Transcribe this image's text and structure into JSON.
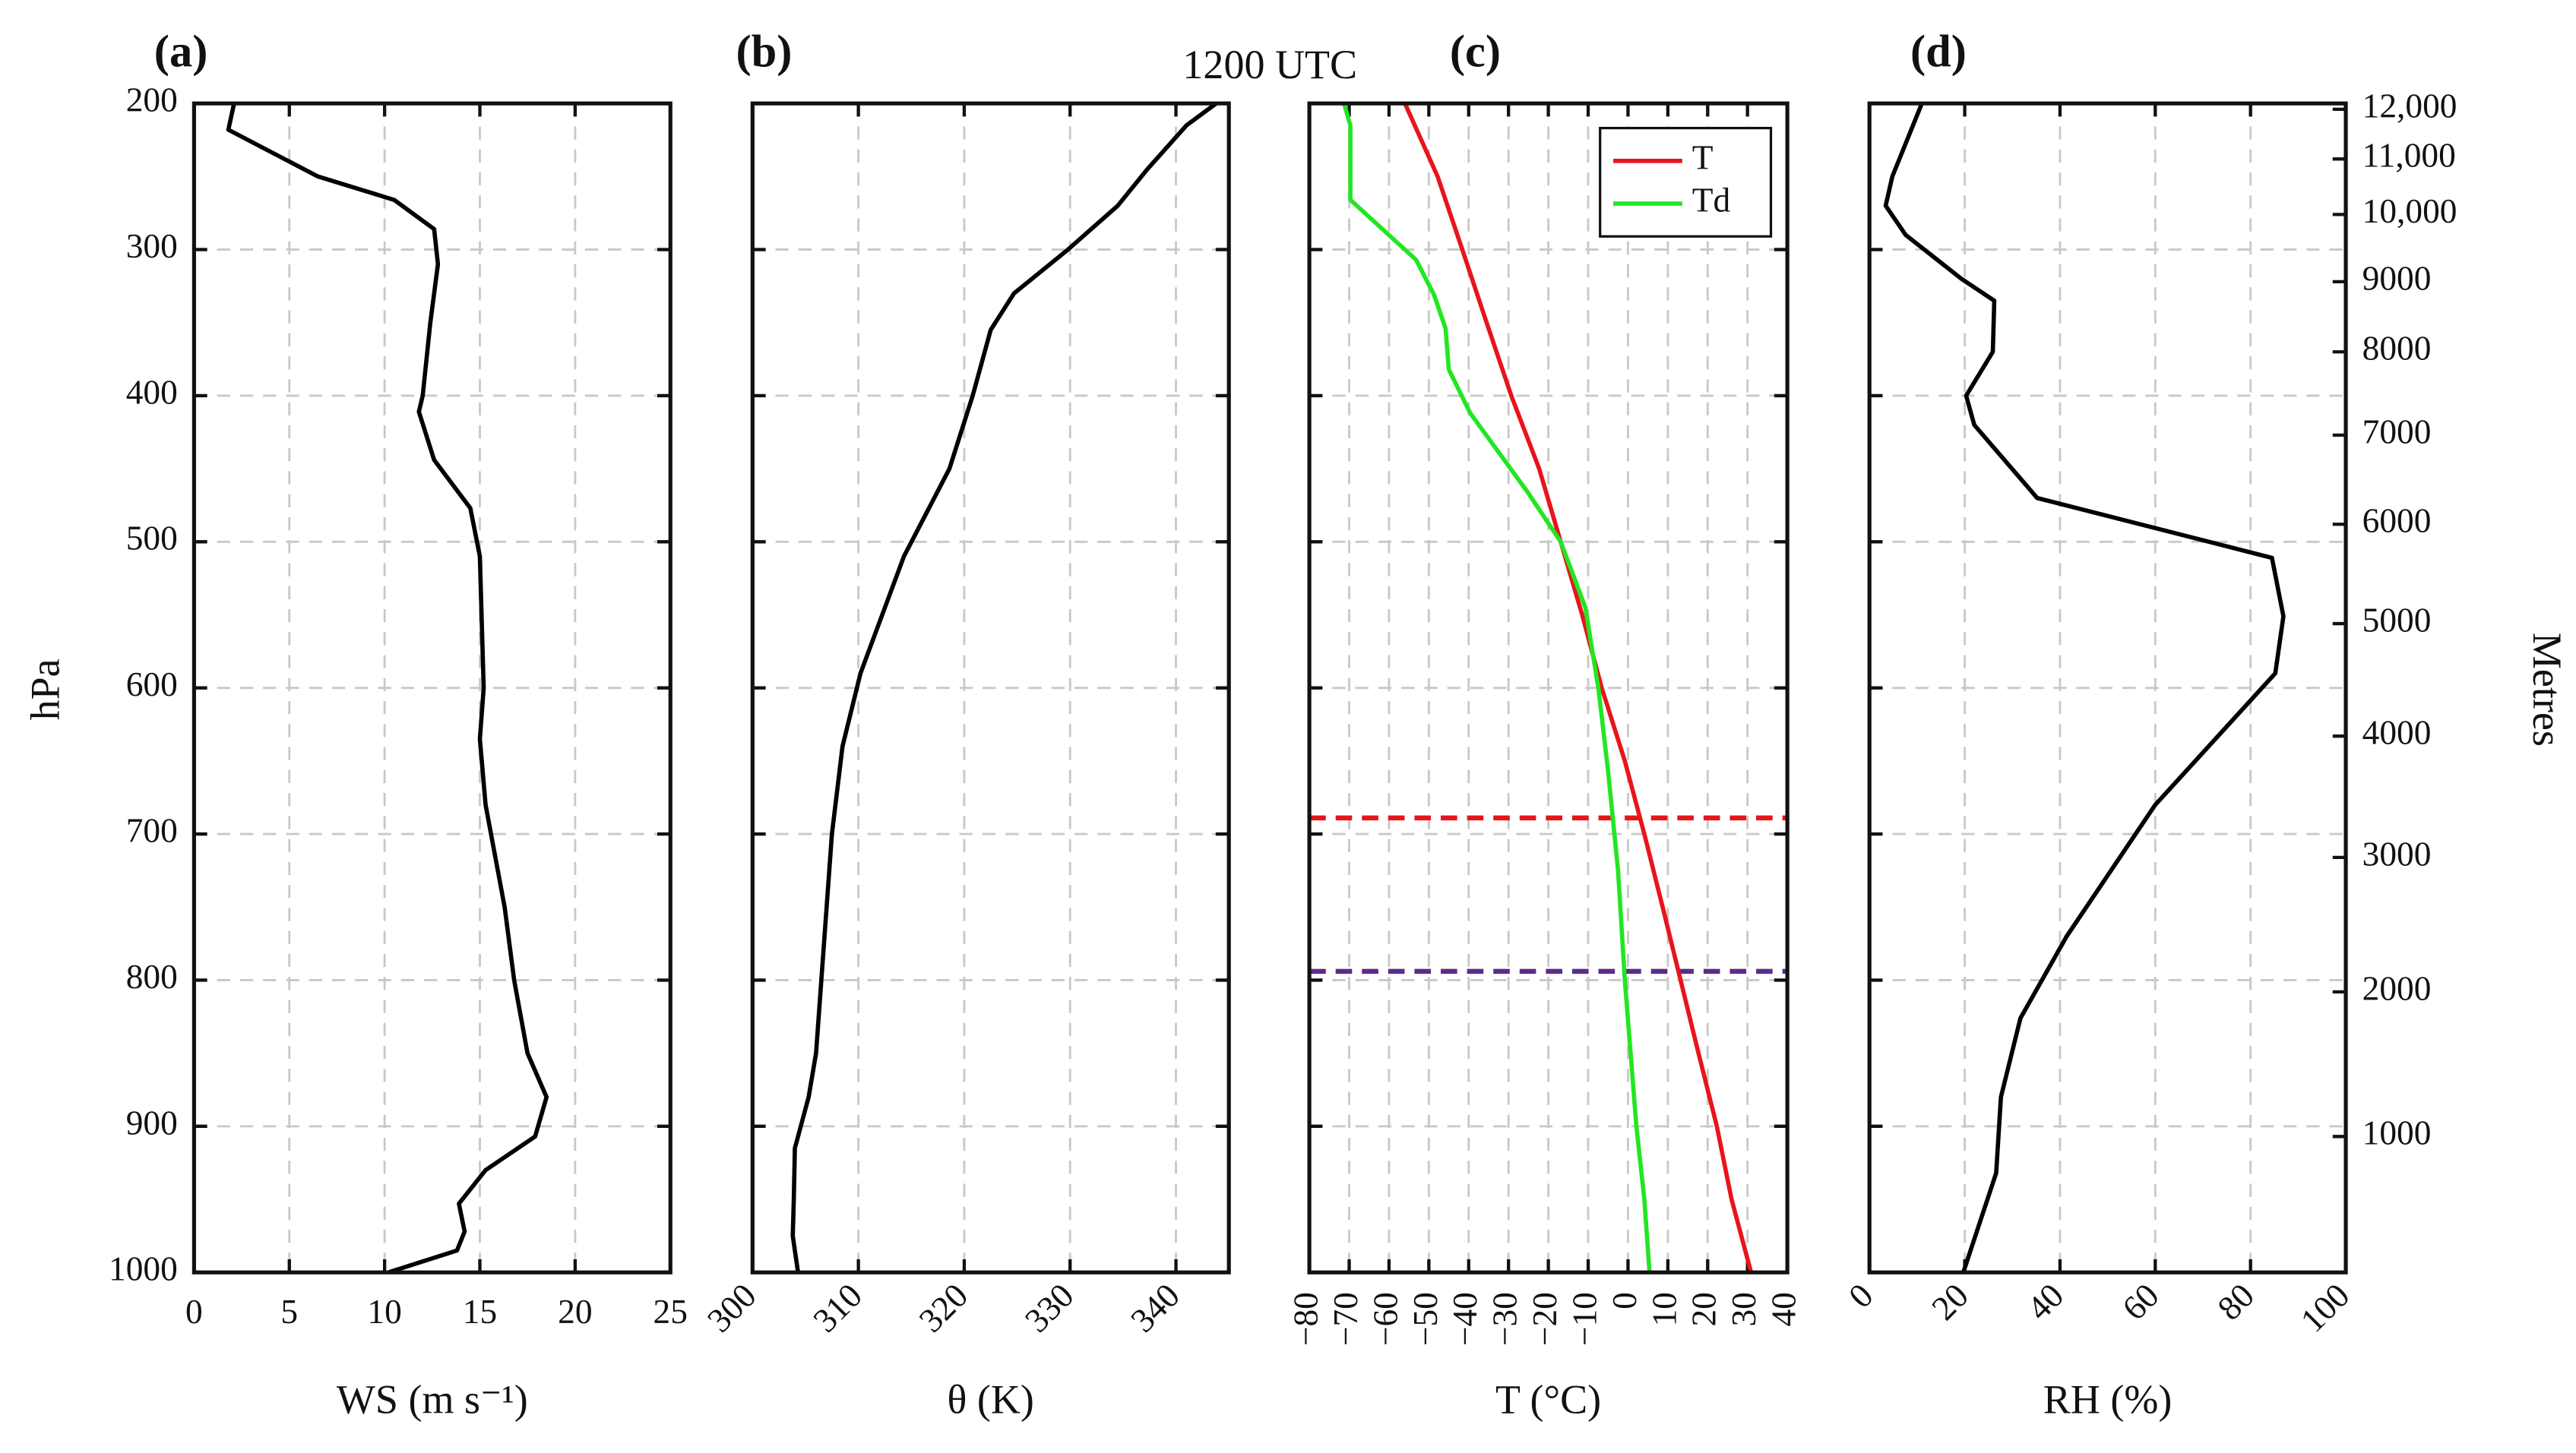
{
  "header": {
    "title": "1200 UTC"
  },
  "chart_data": [
    {
      "type": "line",
      "title": "(a)",
      "xlabel": "WS (m s⁻¹)",
      "ylabel": "hPa",
      "xlim": [
        0,
        25
      ],
      "xticks": [
        0,
        5,
        10,
        15,
        20,
        25
      ],
      "xtick_rotation": 0,
      "ylim": [
        200,
        1000
      ],
      "yreverse": true,
      "yticks": [
        200,
        300,
        400,
        500,
        600,
        700,
        800,
        900,
        1000
      ],
      "grid": true,
      "series": [
        {
          "color": "#000000",
          "levels": [
            200,
            218,
            250,
            266,
            286,
            310,
            350,
            400,
            411,
            444,
            477,
            510,
            600,
            635,
            680,
            750,
            800,
            850,
            880,
            907,
            930,
            953,
            972,
            985,
            1000
          ],
          "values": [
            2.1,
            1.8,
            6.5,
            10.5,
            12.6,
            12.8,
            12.4,
            12.0,
            11.8,
            12.6,
            14.5,
            15.0,
            15.2,
            15.0,
            15.3,
            16.3,
            16.8,
            17.5,
            18.5,
            17.9,
            15.3,
            13.9,
            14.2,
            13.8,
            10.2
          ]
        }
      ]
    },
    {
      "type": "line",
      "title": "(b)",
      "xlabel": "θ (K)",
      "xlim": [
        300,
        345
      ],
      "xticks": [
        300,
        310,
        320,
        330,
        340
      ],
      "xtick_rotation": 45,
      "ylim": [
        200,
        1000
      ],
      "yreverse": true,
      "grid": true,
      "series": [
        {
          "color": "#000000",
          "levels": [
            200,
            215,
            245,
            270,
            300,
            330,
            355,
            400,
            450,
            510,
            590,
            640,
            700,
            800,
            850,
            880,
            915,
            950,
            975,
            1000
          ],
          "values": [
            343.8,
            341,
            337.3,
            334.5,
            329.8,
            324.7,
            322.5,
            320.8,
            318.6,
            314.3,
            310.2,
            308.5,
            307.5,
            306.5,
            306,
            305.3,
            304,
            303.9,
            303.8,
            304.3
          ]
        }
      ]
    },
    {
      "type": "line",
      "title": "(c)",
      "xlabel": "T (°C)",
      "xlim": [
        -80,
        40
      ],
      "xticks": [
        {
          "value": -80,
          "label": "−80"
        },
        {
          "value": -70,
          "label": "−70"
        },
        {
          "value": -60,
          "label": "−60"
        },
        {
          "value": -50,
          "label": "−50"
        },
        {
          "value": -40,
          "label": "−40"
        },
        {
          "value": -30,
          "label": "−30"
        },
        {
          "value": -20,
          "label": "−20"
        },
        {
          "value": -10,
          "label": "−10"
        },
        0,
        10,
        20,
        30,
        40
      ],
      "xtick_rotation": 90,
      "ylim": [
        200,
        1000
      ],
      "yreverse": true,
      "grid": true,
      "legend": "upper right",
      "series": [
        {
          "name": "T",
          "color": "#e8141c",
          "levels": [
            200,
            250,
            300,
            350,
            400,
            450,
            500,
            550,
            600,
            650,
            700,
            750,
            800,
            850,
            900,
            950,
            1000
          ],
          "values": [
            -56,
            -47.8,
            -41.6,
            -35.5,
            -29.3,
            -22.3,
            -16.9,
            -11.5,
            -6.6,
            -0.8,
            4.1,
            8.7,
            13.2,
            17.7,
            22.3,
            26,
            30.9
          ]
        },
        {
          "name": "Td",
          "color": "#22e622",
          "levels": [
            200,
            215,
            266,
            307,
            331,
            354,
            382,
            412,
            466,
            500,
            545,
            601,
            657,
            725,
            800,
            900,
            950,
            1000
          ],
          "values": [
            -71.3,
            -69.7,
            -69.7,
            -53.2,
            -48.7,
            -45.8,
            -45,
            -39.6,
            -25.2,
            -16.9,
            -10.7,
            -7.4,
            -5,
            -2.5,
            -0.8,
            2.1,
            4.1,
            5.4
          ]
        }
      ],
      "hlines": [
        {
          "value": 689,
          "color": "#e8141c"
        },
        {
          "value": 794,
          "color": "#5b2c8a"
        }
      ]
    },
    {
      "type": "line",
      "title": "(d)",
      "xlabel": "RH (%)",
      "y2label": "Metres",
      "xlim": [
        0,
        100
      ],
      "xticks": [
        0,
        20,
        40,
        60,
        80,
        100
      ],
      "xtick_rotation": 45,
      "ylim": [
        200,
        1000
      ],
      "yreverse": true,
      "grid": true,
      "y2ticks": [
        {
          "value": 12000,
          "label": "12,000",
          "pressure": 204
        },
        {
          "value": 11000,
          "label": "11,000",
          "pressure": 238
        },
        {
          "value": 10000,
          "label": "10,000",
          "pressure": 276
        },
        {
          "value": 9000,
          "pressure": 322
        },
        {
          "value": 8000,
          "pressure": 370
        },
        {
          "value": 7000,
          "pressure": 427
        },
        {
          "value": 6000,
          "pressure": 488
        },
        {
          "value": 5000,
          "pressure": 556
        },
        {
          "value": 4000,
          "pressure": 633
        },
        {
          "value": 3000,
          "pressure": 716
        },
        {
          "value": 2000,
          "pressure": 808
        },
        {
          "value": 1000,
          "pressure": 907
        }
      ],
      "series": [
        {
          "color": "#000000",
          "levels": [
            200,
            250,
            270,
            290,
            320,
            335,
            370,
            400,
            420,
            470,
            511,
            551,
            590,
            680,
            770,
            826,
            880,
            932,
            1000
          ],
          "values": [
            11,
            4.8,
            3.4,
            7.6,
            19.3,
            26.2,
            25.9,
            20.3,
            22,
            35.2,
            84.5,
            86.9,
            85.2,
            60,
            41.4,
            31.7,
            27.6,
            26.6,
            19.7
          ]
        }
      ]
    }
  ]
}
